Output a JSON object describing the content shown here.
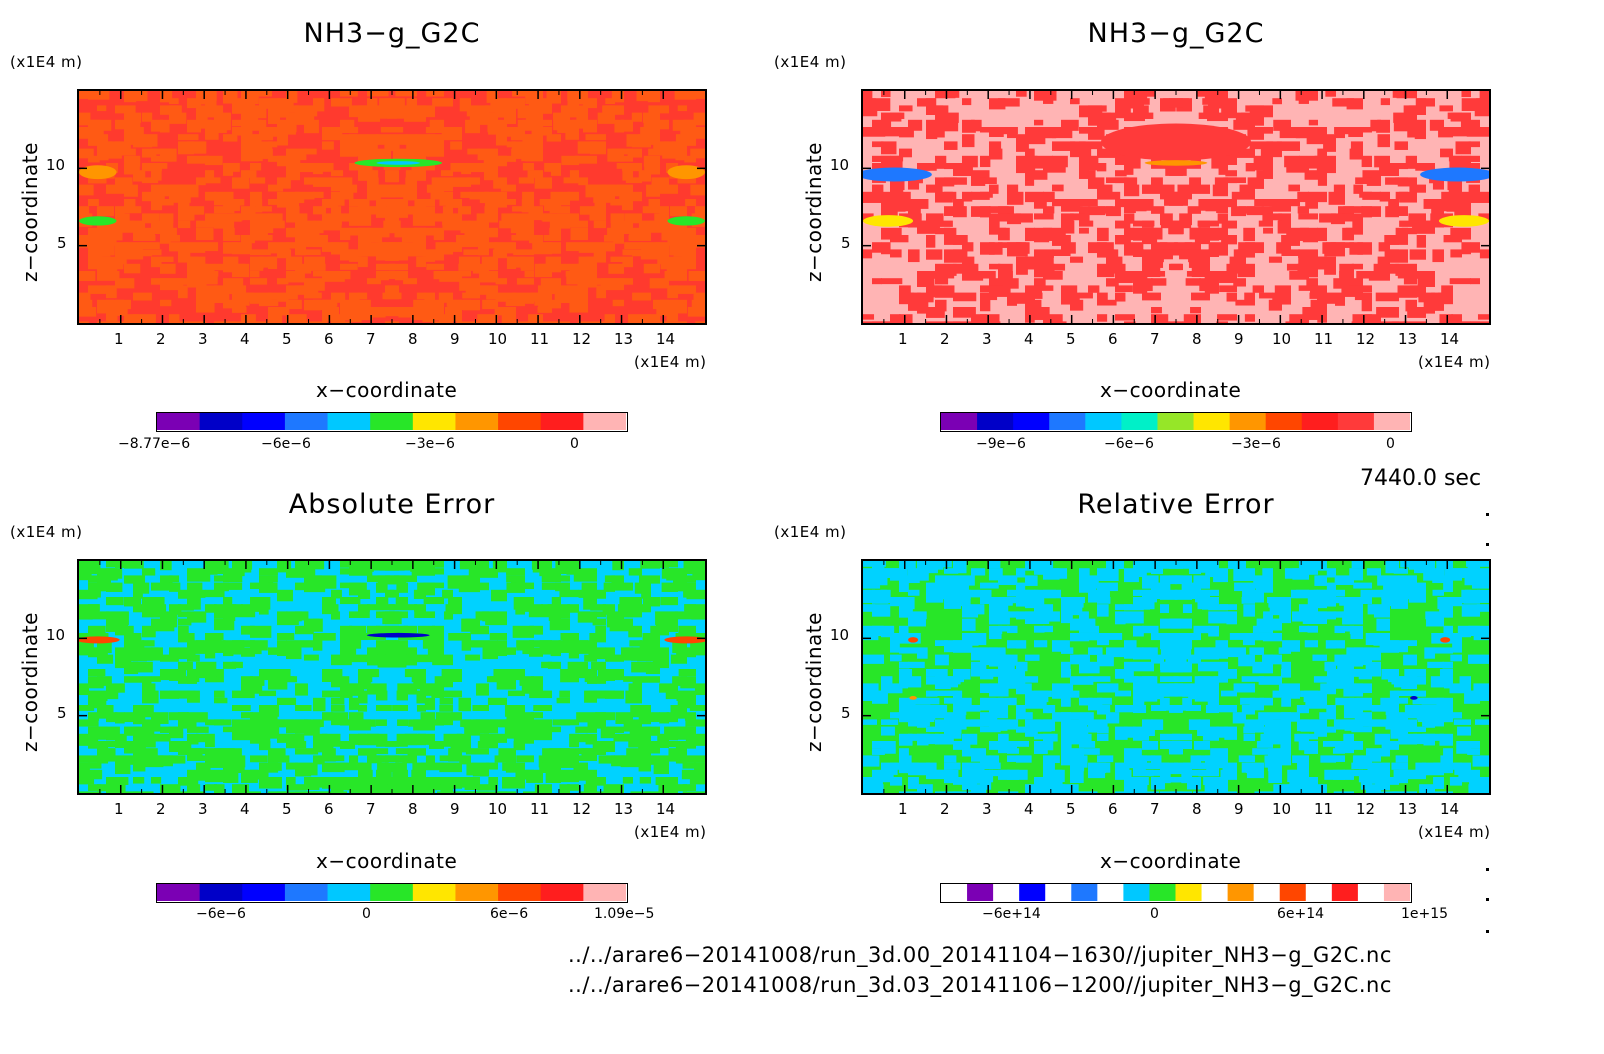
{
  "panels": [
    {
      "id": "p1",
      "title": "NH3−g_G2C",
      "y_unit": "(x1E4 m)",
      "x_unit": "(x1E4 m)",
      "xlabel": "x−coordinate",
      "ylabel": "z−coordinate",
      "xticks": [
        "1",
        "2",
        "3",
        "4",
        "5",
        "6",
        "7",
        "8",
        "9",
        "10",
        "11",
        "12",
        "13",
        "14"
      ],
      "yticks": [
        "5",
        "10"
      ],
      "background": "#ff3a2e",
      "secondary": "#ff5a14",
      "colorbar": {
        "colors": [
          "#7b00b4",
          "#0000c8",
          "#0000ff",
          "#1e78ff",
          "#00c8ff",
          "#28e628",
          "#ffe600",
          "#ff9600",
          "#ff4600",
          "#ff1e1e",
          "#ffb4b4"
        ],
        "labels": [
          "−8.77e−6",
          "−6e−6",
          "−3e−6",
          "0"
        ]
      }
    },
    {
      "id": "p2",
      "title": "NH3−g_G2C",
      "y_unit": "(x1E4 m)",
      "x_unit": "(x1E4 m)",
      "xlabel": "x−coordinate",
      "ylabel": "z−coordinate",
      "xticks": [
        "1",
        "2",
        "3",
        "4",
        "5",
        "6",
        "7",
        "8",
        "9",
        "10",
        "11",
        "12",
        "13",
        "14"
      ],
      "yticks": [
        "5",
        "10"
      ],
      "background": "#ffb4b4",
      "secondary": "#ff3a3a",
      "colorbar": {
        "colors": [
          "#7b00b4",
          "#0000c8",
          "#0000ff",
          "#1e78ff",
          "#00c8ff",
          "#00f0c8",
          "#96e628",
          "#ffe600",
          "#ff9600",
          "#ff4600",
          "#ff1e1e",
          "#ff3a3a",
          "#ffb4b4"
        ],
        "labels": [
          "−9e−6",
          "−6e−6",
          "−3e−6",
          "0"
        ]
      }
    },
    {
      "id": "p3",
      "title": "Absolute Error",
      "y_unit": "(x1E4 m)",
      "x_unit": "(x1E4 m)",
      "xlabel": "x−coordinate",
      "ylabel": "z−coordinate",
      "xticks": [
        "1",
        "2",
        "3",
        "4",
        "5",
        "6",
        "7",
        "8",
        "9",
        "10",
        "11",
        "12",
        "13",
        "14"
      ],
      "yticks": [
        "5",
        "10"
      ],
      "background": "#00d2ff",
      "secondary": "#28e628",
      "colorbar": {
        "colors": [
          "#7b00b4",
          "#0000c8",
          "#0000ff",
          "#1e78ff",
          "#00c8ff",
          "#28e628",
          "#ffe600",
          "#ff9600",
          "#ff4600",
          "#ff1e1e",
          "#ffb4b4"
        ],
        "labels": [
          "−6e−6",
          "0",
          "6e−6",
          "1.09e−5"
        ]
      }
    },
    {
      "id": "p4",
      "title": "Relative Error",
      "y_unit": "(x1E4 m)",
      "x_unit": "(x1E4 m)",
      "xlabel": "x−coordinate",
      "ylabel": "z−coordinate",
      "xticks": [
        "1",
        "2",
        "3",
        "4",
        "5",
        "6",
        "7",
        "8",
        "9",
        "10",
        "11",
        "12",
        "13",
        "14"
      ],
      "yticks": [
        "5",
        "10"
      ],
      "background": "#28e628",
      "secondary": "#00d2ff",
      "colorbar": {
        "colors": [
          "#ffffff",
          "#7b00b4",
          "#ffffff",
          "#0000ff",
          "#ffffff",
          "#1e78ff",
          "#ffffff",
          "#00c8ff",
          "#28e628",
          "#ffe600",
          "#ffffff",
          "#ff9600",
          "#ffffff",
          "#ff4600",
          "#ffffff",
          "#ff1e1e",
          "#ffffff",
          "#ffb4b4"
        ],
        "labels": [
          "−6e+14",
          "0",
          "6e+14",
          "1e+15"
        ]
      }
    }
  ],
  "time_label": "7440.0 sec",
  "file_paths": [
    "../../arare6−20141008/run_3d.00_20141104−1630//jupiter_NH3−g_G2C.nc",
    "../../arare6−20141008/run_3d.03_20141106−1200//jupiter_NH3−g_G2C.nc"
  ],
  "chart_data": [
    {
      "type": "heatmap",
      "title": "NH3−g_G2C",
      "xlabel": "x−coordinate",
      "ylabel": "z−coordinate",
      "xlim": [
        0,
        15
      ],
      "ylim": [
        0,
        15
      ],
      "colorbar_ticks": [
        "−8.77e−6",
        "−6e−6",
        "−3e−6",
        "0"
      ]
    },
    {
      "type": "heatmap",
      "title": "NH3−g_G2C",
      "xlabel": "x−coordinate",
      "ylabel": "z−coordinate",
      "xlim": [
        0,
        15
      ],
      "ylim": [
        0,
        15
      ],
      "colorbar_ticks": [
        "−9e−6",
        "−6e−6",
        "−3e−6",
        "0"
      ]
    },
    {
      "type": "heatmap",
      "title": "Absolute Error",
      "xlabel": "x−coordinate",
      "ylabel": "z−coordinate",
      "xlim": [
        0,
        15
      ],
      "ylim": [
        0,
        15
      ],
      "colorbar_ticks": [
        "−6e−6",
        "0",
        "6e−6",
        "1.09e−5"
      ]
    },
    {
      "type": "heatmap",
      "title": "Relative Error",
      "xlabel": "x−coordinate",
      "ylabel": "z−coordinate",
      "xlim": [
        0,
        15
      ],
      "ylim": [
        0,
        15
      ],
      "colorbar_ticks": [
        "−6e+14",
        "0",
        "6e+14",
        "1e+15"
      ]
    }
  ]
}
